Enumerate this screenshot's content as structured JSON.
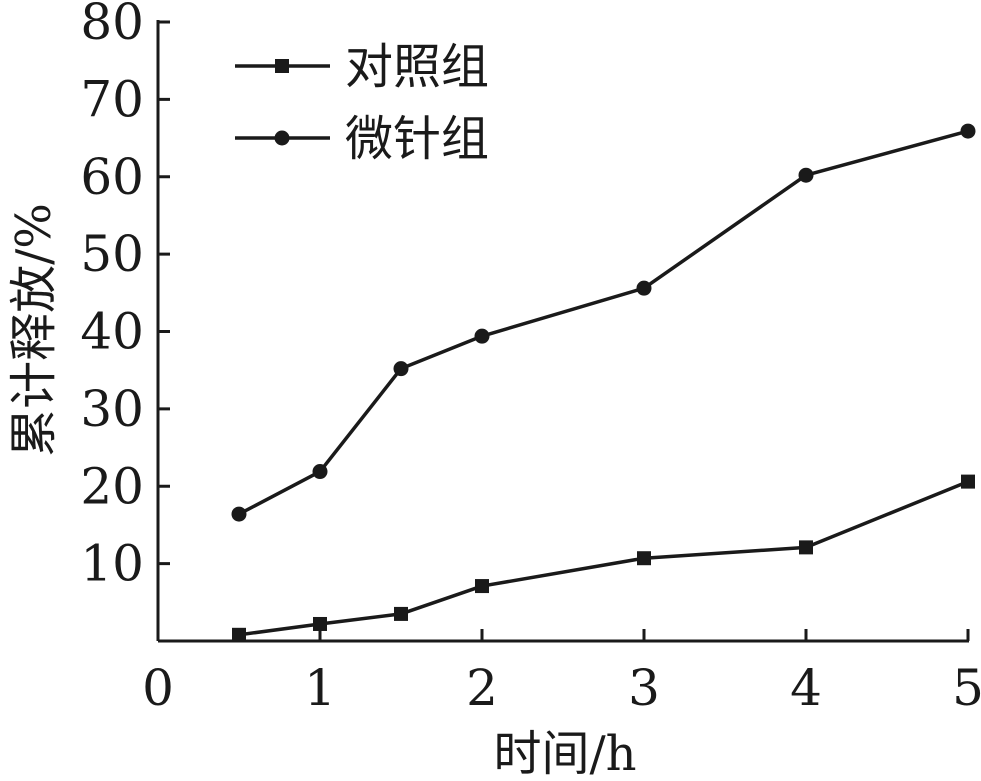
{
  "chart_data": {
    "type": "line",
    "title": "",
    "xlabel": "时间/h",
    "ylabel": "累计释放/%",
    "xlim": [
      0,
      5
    ],
    "ylim": [
      0,
      80
    ],
    "x_ticks": [
      "0",
      "1",
      "2",
      "3",
      "4",
      "5"
    ],
    "y_ticks": [
      "10",
      "20",
      "30",
      "40",
      "50",
      "60",
      "70",
      "80"
    ],
    "grid": false,
    "legend_position": "top-left",
    "series": [
      {
        "name": "对照组",
        "marker": "square",
        "x": [
          0.5,
          1,
          1.5,
          2,
          3,
          4,
          5
        ],
        "y": [
          0.8,
          2.2,
          3.5,
          7.1,
          10.7,
          12.1,
          20.6
        ]
      },
      {
        "name": "微针组",
        "marker": "circle",
        "x": [
          0.5,
          1,
          1.5,
          2,
          3,
          4,
          5
        ],
        "y": [
          16.4,
          21.9,
          35.2,
          39.4,
          45.6,
          60.2,
          65.9
        ]
      }
    ]
  },
  "colors": {
    "ink": "#1a1a1a",
    "background": "#ffffff"
  }
}
